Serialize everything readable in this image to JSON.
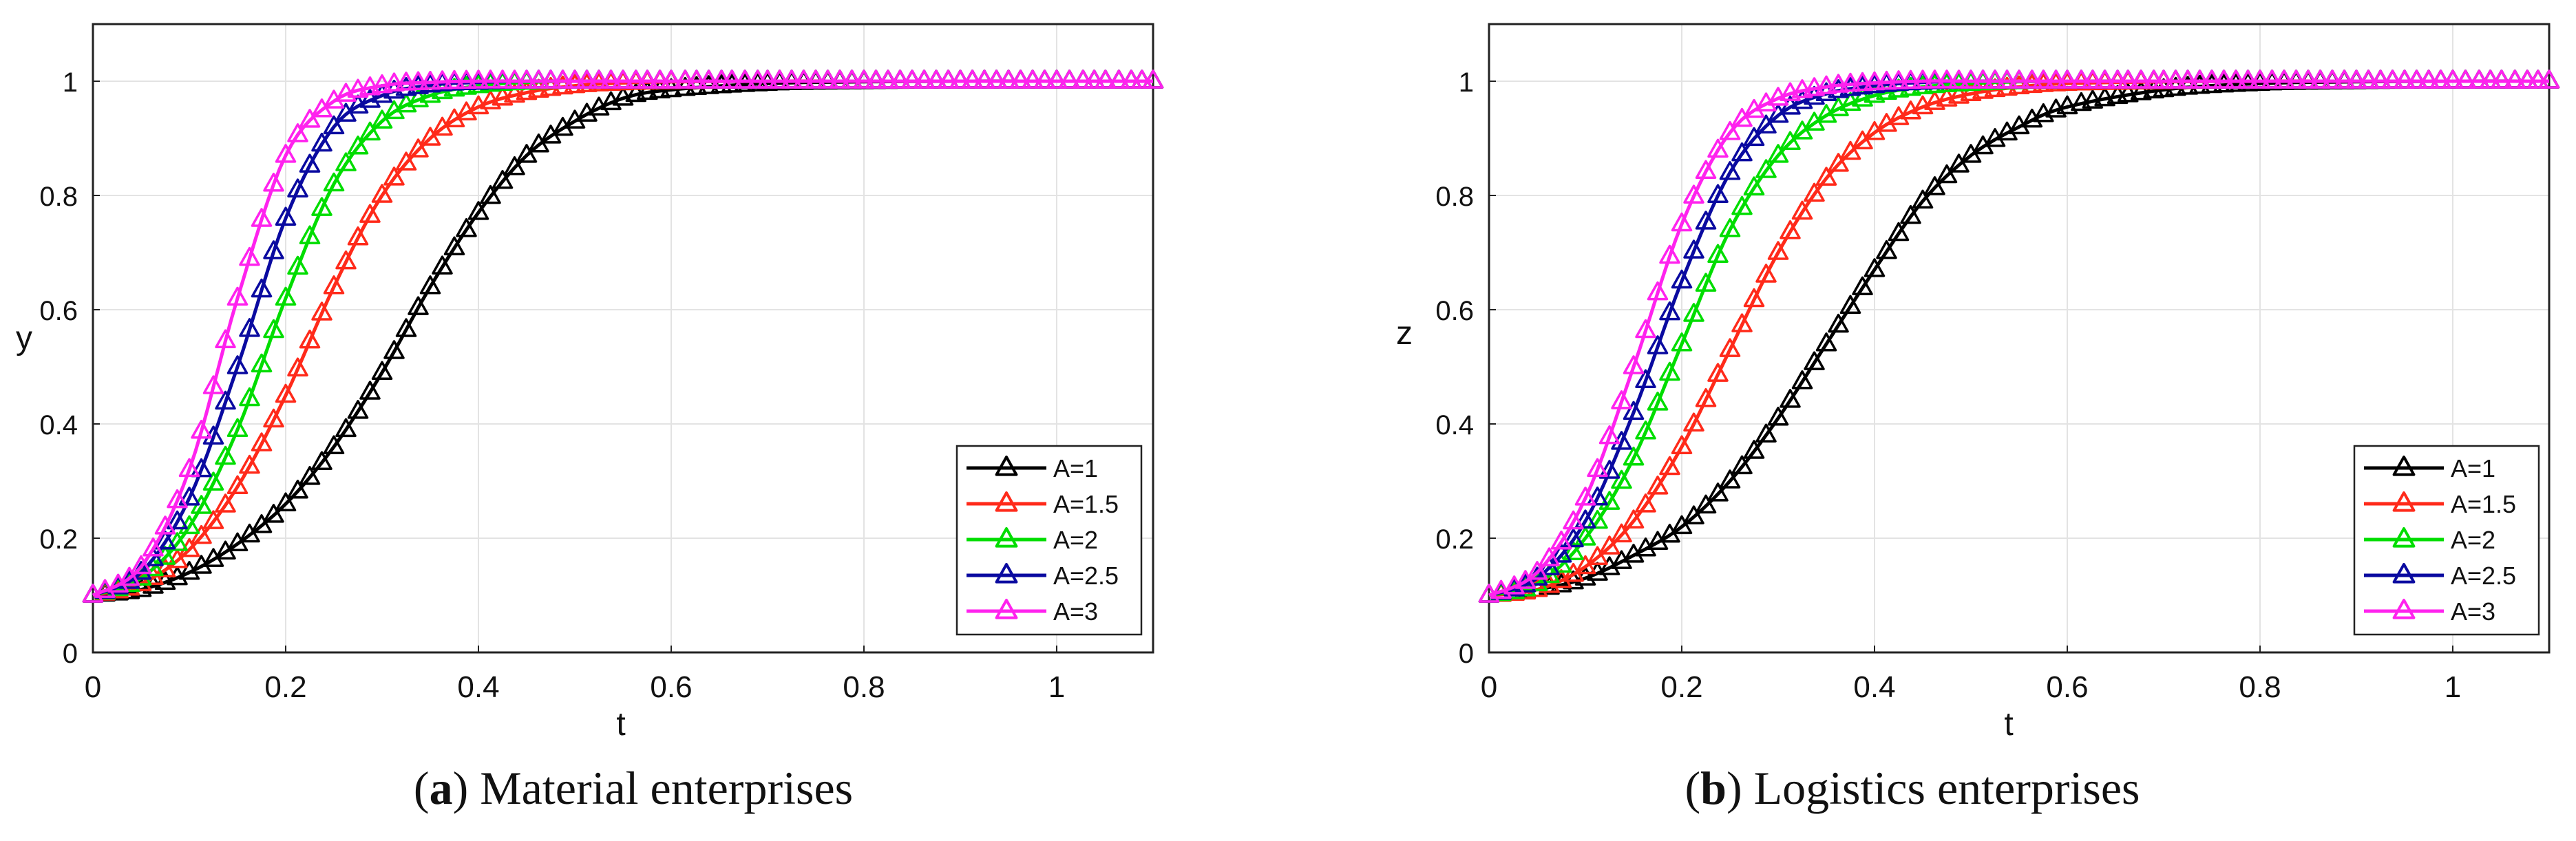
{
  "chart_data": [
    {
      "type": "line",
      "panel_label": "a",
      "caption": "Material enterprises",
      "xlabel": "t",
      "ylabel": "y",
      "xlim": [
        0,
        1.1
      ],
      "ylim": [
        0,
        1.1
      ],
      "xticks": [
        0,
        0.2,
        0.4,
        0.6,
        0.8,
        1
      ],
      "xtick_labels": [
        "0",
        "0.2",
        "0.4",
        "0.6",
        "0.8",
        "1"
      ],
      "yticks": [
        0,
        0.2,
        0.4,
        0.6,
        0.8,
        1
      ],
      "ytick_labels": [
        "0",
        "0.2",
        "0.4",
        "0.6",
        "0.8",
        "1"
      ],
      "grid": true,
      "legend_position": "bottom-right",
      "x": [
        0,
        0.05,
        0.1,
        0.15,
        0.2,
        0.25,
        0.3,
        0.35,
        0.4,
        0.45,
        0.5,
        0.55,
        0.6,
        0.7,
        0.8,
        0.9,
        1.0,
        1.1
      ],
      "series": [
        {
          "name": "A=1",
          "color": "#000000",
          "values": [
            0.1,
            0.11,
            0.14,
            0.19,
            0.26,
            0.36,
            0.49,
            0.64,
            0.77,
            0.87,
            0.93,
            0.97,
            0.985,
            0.996,
            0.999,
            1.0,
            1.0,
            1.0
          ]
        },
        {
          "name": "A=1.5",
          "color": "#ff2a1a",
          "values": [
            0.1,
            0.12,
            0.18,
            0.29,
            0.45,
            0.64,
            0.8,
            0.9,
            0.955,
            0.98,
            0.992,
            0.997,
            0.999,
            1.0,
            1.0,
            1.0,
            1.0,
            1.0
          ]
        },
        {
          "name": "A=2",
          "color": "#00dd00",
          "values": [
            0.1,
            0.13,
            0.22,
            0.39,
            0.62,
            0.82,
            0.93,
            0.975,
            0.992,
            0.998,
            1.0,
            1.0,
            1.0,
            1.0,
            1.0,
            1.0,
            1.0,
            1.0
          ]
        },
        {
          "name": "A=2.5",
          "color": "#0a0aa0",
          "values": [
            0.1,
            0.14,
            0.27,
            0.5,
            0.76,
            0.92,
            0.975,
            0.993,
            0.998,
            1.0,
            1.0,
            1.0,
            1.0,
            1.0,
            1.0,
            1.0,
            1.0,
            1.0
          ]
        },
        {
          "name": "A=3",
          "color": "#ff22ee",
          "values": [
            0.1,
            0.15,
            0.32,
            0.62,
            0.87,
            0.965,
            0.992,
            0.998,
            1.0,
            1.0,
            1.0,
            1.0,
            1.0,
            1.0,
            1.0,
            1.0,
            1.0,
            1.0
          ]
        }
      ]
    },
    {
      "type": "line",
      "panel_label": "b",
      "caption": "Logistics enterprises",
      "xlabel": "t",
      "ylabel": "z",
      "xlim": [
        0,
        1.1
      ],
      "ylim": [
        0,
        1.1
      ],
      "xticks": [
        0,
        0.2,
        0.4,
        0.6,
        0.8,
        1
      ],
      "xtick_labels": [
        "0",
        "0.2",
        "0.4",
        "0.6",
        "0.8",
        "1"
      ],
      "yticks": [
        0,
        0.2,
        0.4,
        0.6,
        0.8,
        1
      ],
      "ytick_labels": [
        "0",
        "0.2",
        "0.4",
        "0.6",
        "0.8",
        "1"
      ],
      "grid": true,
      "legend_position": "bottom-right",
      "x": [
        0,
        0.05,
        0.1,
        0.15,
        0.2,
        0.25,
        0.3,
        0.35,
        0.4,
        0.45,
        0.5,
        0.55,
        0.6,
        0.7,
        0.8,
        0.9,
        1.0,
        1.1
      ],
      "series": [
        {
          "name": "A=1",
          "color": "#000000",
          "values": [
            0.1,
            0.11,
            0.13,
            0.17,
            0.22,
            0.3,
            0.41,
            0.54,
            0.67,
            0.79,
            0.87,
            0.92,
            0.955,
            0.985,
            0.996,
            0.999,
            1.0,
            1.0
          ]
        },
        {
          "name": "A=1.5",
          "color": "#ff2a1a",
          "values": [
            0.1,
            0.11,
            0.15,
            0.23,
            0.36,
            0.53,
            0.7,
            0.83,
            0.91,
            0.955,
            0.978,
            0.99,
            0.996,
            0.999,
            1.0,
            1.0,
            1.0,
            1.0
          ]
        },
        {
          "name": "A=2",
          "color": "#00dd00",
          "values": [
            0.1,
            0.12,
            0.2,
            0.34,
            0.54,
            0.74,
            0.87,
            0.94,
            0.975,
            0.99,
            0.996,
            0.999,
            1.0,
            1.0,
            1.0,
            1.0,
            1.0,
            1.0
          ]
        },
        {
          "name": "A=2.5",
          "color": "#0a0aa0",
          "values": [
            0.1,
            0.13,
            0.23,
            0.42,
            0.65,
            0.84,
            0.94,
            0.978,
            0.992,
            0.998,
            1.0,
            1.0,
            1.0,
            1.0,
            1.0,
            1.0,
            1.0,
            1.0
          ]
        },
        {
          "name": "A=3",
          "color": "#ff22ee",
          "values": [
            0.1,
            0.14,
            0.27,
            0.5,
            0.75,
            0.91,
            0.97,
            0.99,
            0.997,
            1.0,
            1.0,
            1.0,
            1.0,
            1.0,
            1.0,
            1.0,
            1.0,
            1.0
          ]
        }
      ]
    }
  ]
}
